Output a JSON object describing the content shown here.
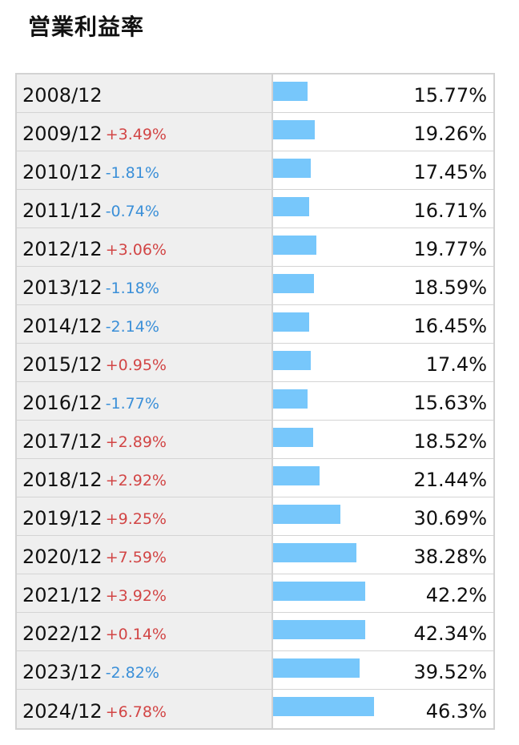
{
  "title": "営業利益率",
  "colors": {
    "bar": "#77c7fb",
    "up": "#d24545",
    "down": "#3a8fd8"
  },
  "chart_data": {
    "type": "bar",
    "title": "営業利益率",
    "xlabel": "",
    "ylabel": "",
    "categories": [
      "2008/12",
      "2009/12",
      "2010/12",
      "2011/12",
      "2012/12",
      "2013/12",
      "2014/12",
      "2015/12",
      "2016/12",
      "2017/12",
      "2018/12",
      "2019/12",
      "2020/12",
      "2021/12",
      "2022/12",
      "2023/12",
      "2024/12"
    ],
    "values": [
      15.77,
      19.26,
      17.45,
      16.71,
      19.77,
      18.59,
      16.45,
      17.4,
      15.63,
      18.52,
      21.44,
      30.69,
      38.28,
      42.2,
      42.34,
      39.52,
      46.3
    ]
  },
  "rows": [
    {
      "year": "2008/12",
      "diff": "",
      "dir": "",
      "value": "15.77%"
    },
    {
      "year": "2009/12",
      "diff": "+3.49%",
      "dir": "up",
      "value": "19.26%"
    },
    {
      "year": "2010/12",
      "diff": "-1.81%",
      "dir": "down",
      "value": "17.45%"
    },
    {
      "year": "2011/12",
      "diff": "-0.74%",
      "dir": "down",
      "value": "16.71%"
    },
    {
      "year": "2012/12",
      "diff": "+3.06%",
      "dir": "up",
      "value": "19.77%"
    },
    {
      "year": "2013/12",
      "diff": "-1.18%",
      "dir": "down",
      "value": "18.59%"
    },
    {
      "year": "2014/12",
      "diff": "-2.14%",
      "dir": "down",
      "value": "16.45%"
    },
    {
      "year": "2015/12",
      "diff": "+0.95%",
      "dir": "up",
      "value": "17.4%"
    },
    {
      "year": "2016/12",
      "diff": "-1.77%",
      "dir": "down",
      "value": "15.63%"
    },
    {
      "year": "2017/12",
      "diff": "+2.89%",
      "dir": "up",
      "value": "18.52%"
    },
    {
      "year": "2018/12",
      "diff": "+2.92%",
      "dir": "up",
      "value": "21.44%"
    },
    {
      "year": "2019/12",
      "diff": "+9.25%",
      "dir": "up",
      "value": "30.69%"
    },
    {
      "year": "2020/12",
      "diff": "+7.59%",
      "dir": "up",
      "value": "38.28%"
    },
    {
      "year": "2021/12",
      "diff": "+3.92%",
      "dir": "up",
      "value": "42.2%"
    },
    {
      "year": "2022/12",
      "diff": "+0.14%",
      "dir": "up",
      "value": "42.34%"
    },
    {
      "year": "2023/12",
      "diff": "-2.82%",
      "dir": "down",
      "value": "39.52%"
    },
    {
      "year": "2024/12",
      "diff": "+6.78%",
      "dir": "up",
      "value": "46.3%"
    }
  ]
}
